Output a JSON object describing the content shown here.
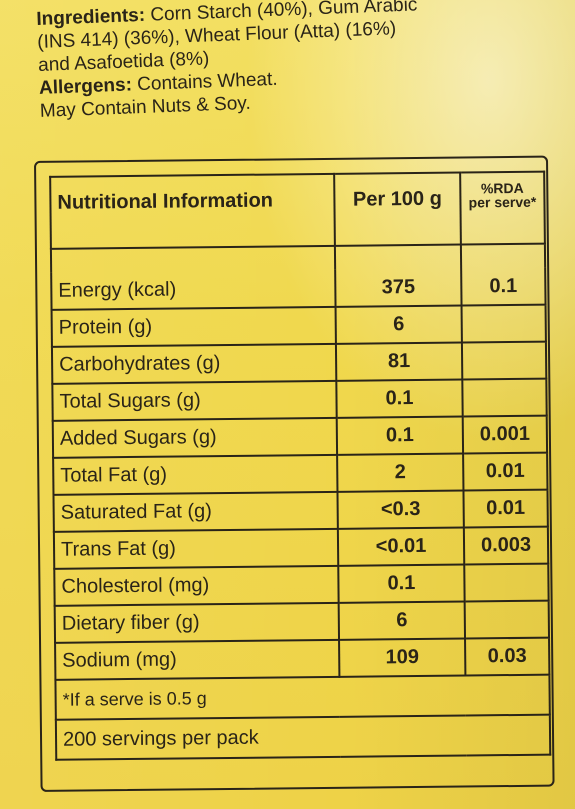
{
  "ingredients": {
    "label": "Ingredients:",
    "line1": "Corn Starch (40%), Gum Arabic",
    "line2": "(INS 414) (36%), Wheat Flour (Atta) (16%)",
    "line3": "and Asafoetida (8%)"
  },
  "allergens": {
    "label": "Allergens:",
    "text": "Contains Wheat.",
    "may_contain": "May Contain Nuts & Soy."
  },
  "table": {
    "header_name": "Nutritional Information",
    "header_per": "Per 100 g",
    "header_rda_line1": "%RDA",
    "header_rda_line2": "per serve*",
    "rows": [
      {
        "name": "Energy (kcal)",
        "per": "375",
        "rda": "0.1"
      },
      {
        "name": "Protein (g)",
        "per": "6",
        "rda": ""
      },
      {
        "name": "Carbohydrates (g)",
        "per": "81",
        "rda": ""
      },
      {
        "name": "Total Sugars (g)",
        "per": "0.1",
        "rda": ""
      },
      {
        "name": "Added Sugars (g)",
        "per": "0.1",
        "rda": "0.001"
      },
      {
        "name": "Total Fat (g)",
        "per": "2",
        "rda": "0.01"
      },
      {
        "name": "Saturated Fat (g)",
        "per": "<0.3",
        "rda": "0.01"
      },
      {
        "name": "Trans Fat (g)",
        "per": "<0.01",
        "rda": "0.003"
      },
      {
        "name": "Cholesterol (mg)",
        "per": "0.1",
        "rda": ""
      },
      {
        "name": "Dietary fiber (g)",
        "per": "6",
        "rda": ""
      },
      {
        "name": "Sodium (mg)",
        "per": "109",
        "rda": "0.03"
      }
    ],
    "footnote": "*If a serve is 0.5 g",
    "servings": "200 servings per pack"
  }
}
